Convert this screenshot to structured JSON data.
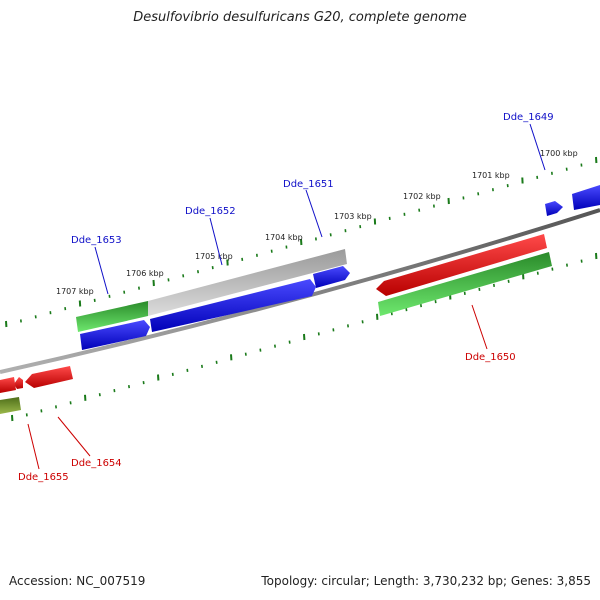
{
  "title": "Desulfovibrio desulfuricans G20, complete genome",
  "accession": "Accession: NC_007519",
  "summary": "Topology: circular; Length: 3,730,232 bp; Genes: 3,855",
  "colors": {
    "forward_gene": "#0a0ae0",
    "reverse_gene": "#e01010",
    "rna_gene": "#2fb82f",
    "pseudo_gene": "#bdbdbd",
    "olive_gene": "#6b8e23",
    "backbone": "#7a7a7a",
    "tick": "#1a7a1a",
    "label_forward": "#1010c8",
    "label_reverse": "#cc0000"
  },
  "kbp_labels": [
    "1700 kbp",
    "1701 kbp",
    "1702 kbp",
    "1703 kbp",
    "1704 kbp",
    "1705 kbp",
    "1706 kbp",
    "1707 kbp"
  ],
  "gene_labels": {
    "forward": [
      "Dde_1649",
      "Dde_1651",
      "Dde_1652",
      "Dde_1653"
    ],
    "reverse": [
      "Dde_1650",
      "Dde_1654",
      "Dde_1655"
    ]
  }
}
